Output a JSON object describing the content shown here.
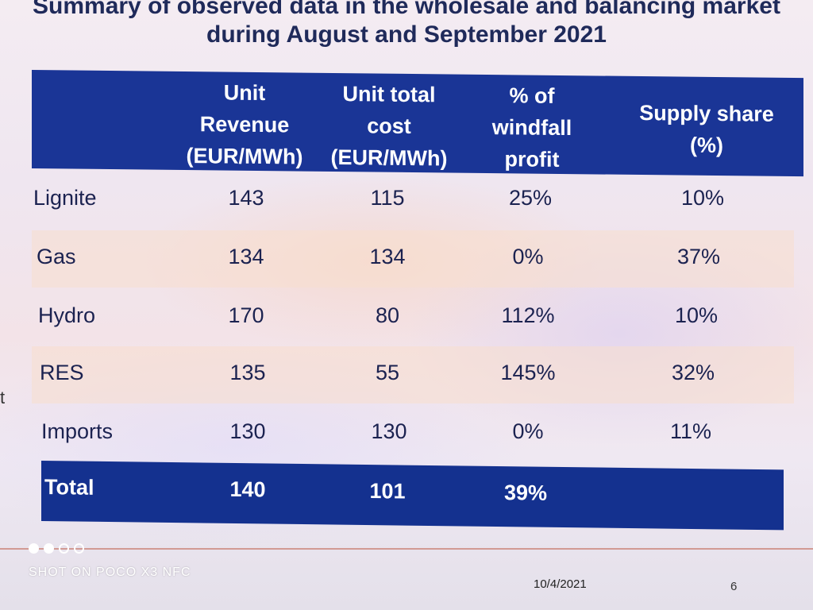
{
  "title": {
    "line1": "Summary of observed data in the wholesale and balancing market",
    "line2": "during August and September 2021"
  },
  "table": {
    "headers": [
      "",
      "Unit\nRevenue\n(EUR/MWh)",
      "Unit total\ncost\n(EUR/MWh)",
      "% of\nwindfall\nprofit",
      "Supply share\n(%)"
    ],
    "rows": [
      {
        "name": "Lignite",
        "revenue": "143",
        "cost": "115",
        "windfall": "25%",
        "share": "10%"
      },
      {
        "name": "Gas",
        "revenue": "134",
        "cost": "134",
        "windfall": "0%",
        "share": "37%"
      },
      {
        "name": "Hydro",
        "revenue": "170",
        "cost": "80",
        "windfall": "112%",
        "share": "10%"
      },
      {
        "name": "RES",
        "revenue": "135",
        "cost": "55",
        "windfall": "145%",
        "share": "32%"
      },
      {
        "name": "Imports",
        "revenue": "130",
        "cost": "130",
        "windfall": "0%",
        "share": "11%"
      }
    ],
    "total": {
      "name": "Total",
      "revenue": "140",
      "cost": "101",
      "windfall": "39%",
      "share": ""
    }
  },
  "footer": {
    "date": "10/4/2021",
    "page": "6",
    "stray_char": "t"
  },
  "watermark": "SHOT ON POCO X3 NFC"
}
